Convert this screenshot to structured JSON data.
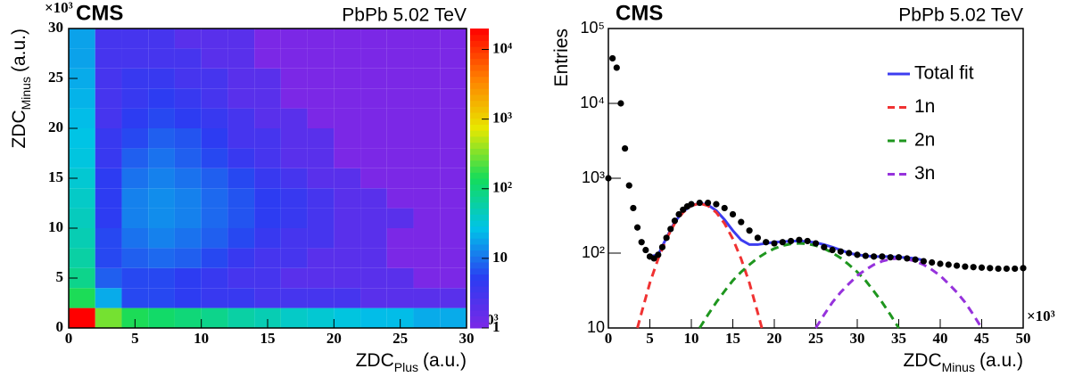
{
  "chart_data": [
    {
      "type": "heatmap",
      "title": "CMS",
      "subtitle": "PbPb 5.02 TeV",
      "x_label": {
        "text": "ZDC",
        "sub": "Plus",
        "unit": "(a.u.)"
      },
      "y_label": {
        "text": "ZDC",
        "sub": "Minus",
        "unit": "(a.u.)"
      },
      "x_multiplier": "×10³",
      "y_multiplier": "×10³",
      "xlim": [
        0,
        30
      ],
      "ylim": [
        0,
        30
      ],
      "xticks": [
        0,
        5,
        10,
        15,
        20,
        25,
        30
      ],
      "yticks": [
        0,
        5,
        10,
        15,
        20,
        25,
        30
      ],
      "x_bins": [
        0,
        2,
        4,
        6,
        8,
        10,
        12,
        14,
        16,
        18,
        20,
        22,
        24,
        26,
        28,
        30
      ],
      "y_bins": [
        0,
        2,
        4,
        6,
        8,
        10,
        12,
        14,
        16,
        18,
        20,
        22,
        24,
        26,
        28,
        30
      ],
      "z": [
        [
          20000,
          300,
          150,
          120,
          100,
          80,
          60,
          50,
          40,
          35,
          30,
          25,
          25,
          20,
          20
        ],
        [
          150,
          20,
          6,
          6,
          5,
          4,
          4,
          3,
          3,
          3,
          3,
          2,
          2,
          2,
          2
        ],
        [
          80,
          8,
          6,
          6,
          5,
          4,
          3,
          3,
          2,
          2,
          2,
          2,
          2,
          1,
          1
        ],
        [
          60,
          6,
          8,
          9,
          8,
          6,
          4,
          3,
          3,
          2,
          2,
          2,
          1,
          1,
          1
        ],
        [
          50,
          6,
          10,
          12,
          10,
          8,
          6,
          4,
          3,
          3,
          2,
          2,
          1,
          1,
          1
        ],
        [
          45,
          5,
          12,
          14,
          12,
          9,
          7,
          5,
          4,
          3,
          2,
          2,
          2,
          1,
          1
        ],
        [
          40,
          5,
          12,
          14,
          12,
          9,
          7,
          5,
          4,
          3,
          2,
          2,
          1,
          1,
          1
        ],
        [
          35,
          5,
          10,
          12,
          10,
          8,
          6,
          4,
          3,
          2,
          2,
          1,
          1,
          1,
          1
        ],
        [
          30,
          4,
          8,
          10,
          8,
          6,
          4,
          3,
          2,
          2,
          1,
          1,
          1,
          1,
          1
        ],
        [
          28,
          4,
          6,
          8,
          7,
          5,
          3,
          3,
          2,
          2,
          1,
          1,
          1,
          1,
          1
        ],
        [
          25,
          3,
          5,
          6,
          5,
          4,
          3,
          2,
          2,
          1,
          1,
          1,
          1,
          1,
          1
        ],
        [
          22,
          3,
          4,
          5,
          4,
          3,
          2,
          2,
          1,
          1,
          1,
          1,
          1,
          1,
          1
        ],
        [
          20,
          3,
          4,
          4,
          3,
          3,
          2,
          2,
          1,
          1,
          1,
          1,
          1,
          1,
          1
        ],
        [
          18,
          3,
          3,
          3,
          3,
          2,
          2,
          1,
          1,
          1,
          1,
          1,
          1,
          1,
          1
        ],
        [
          18,
          3,
          3,
          3,
          2,
          2,
          2,
          1,
          1,
          1,
          1,
          1,
          1,
          1,
          1
        ]
      ],
      "zlim": [
        1,
        20000
      ],
      "zlog": true,
      "zticks": [
        1,
        10,
        {
          "value": 100,
          "label": "10²"
        },
        {
          "value": 1000,
          "label": "10³"
        },
        {
          "value": 10000,
          "label": "10⁴"
        }
      ],
      "palette": [
        "#7b28e6",
        "#2b3cf2",
        "#00c4e8",
        "#14dc5a",
        "#e8e800",
        "#ff8000",
        "#ff0000"
      ]
    },
    {
      "type": "scatter",
      "title": "CMS",
      "subtitle": "PbPb 5.02 TeV",
      "x_label": {
        "text": "ZDC",
        "sub": "Minus",
        "unit": "(a.u.)"
      },
      "y_label": {
        "text": "Entries"
      },
      "x_multiplier": "×10³",
      "xlim": [
        0,
        50
      ],
      "ylim": [
        10,
        100000
      ],
      "ylog": true,
      "xticks": [
        0,
        5,
        10,
        15,
        20,
        25,
        30,
        35,
        40,
        45,
        50
      ],
      "yticks": [
        10,
        {
          "value": 100,
          "label": "10²"
        },
        {
          "value": 1000,
          "label": "10³"
        },
        {
          "value": 10000,
          "label": "10⁴"
        },
        {
          "value": 100000,
          "label": "10⁵"
        }
      ],
      "points": {
        "color": "#000000",
        "x": [
          0,
          0.5,
          1,
          1.5,
          2,
          2.5,
          3,
          3.5,
          4,
          4.5,
          5,
          5.5,
          6,
          6.5,
          7,
          7.5,
          8,
          8.5,
          9,
          9.5,
          10,
          11,
          12,
          13,
          14,
          15,
          16,
          17,
          18,
          19,
          20,
          21,
          22,
          23,
          24,
          25,
          26,
          27,
          28,
          29,
          30,
          31,
          32,
          33,
          34,
          35,
          36,
          37,
          38,
          39,
          40,
          41,
          42,
          43,
          44,
          45,
          46,
          47,
          48,
          49,
          50
        ],
        "values": [
          1000,
          40000,
          30000,
          10000,
          2500,
          800,
          400,
          220,
          140,
          110,
          90,
          85,
          95,
          120,
          160,
          210,
          270,
          330,
          380,
          420,
          450,
          470,
          470,
          450,
          400,
          330,
          260,
          200,
          160,
          140,
          135,
          140,
          145,
          150,
          145,
          135,
          120,
          110,
          105,
          100,
          95,
          92,
          90,
          90,
          88,
          88,
          85,
          82,
          78,
          75,
          72,
          70,
          68,
          66,
          65,
          64,
          63,
          62,
          62,
          62,
          63
        ]
      },
      "series": [
        {
          "name": "Total fit",
          "color": "#3c3cf0",
          "dash": false,
          "x": [
            5,
            6,
            7,
            8,
            9,
            10,
            11,
            12,
            13,
            14,
            15,
            16,
            17,
            18,
            19,
            20,
            21,
            22,
            23,
            24,
            25,
            26,
            27,
            28,
            29,
            30,
            31,
            32,
            33,
            34,
            35,
            36,
            37,
            38
          ],
          "values": [
            90,
            95,
            160,
            260,
            360,
            430,
            465,
            440,
            370,
            280,
            200,
            150,
            130,
            130,
            135,
            140,
            142,
            145,
            145,
            143,
            138,
            130,
            120,
            110,
            100,
            95,
            92,
            90,
            90,
            90,
            88,
            87,
            85,
            80
          ]
        },
        {
          "name": "1n",
          "color": "#f03232",
          "dash": true,
          "x": [
            3.5,
            4,
            5,
            6,
            7,
            8,
            9,
            10,
            11,
            12,
            13,
            14,
            15,
            16,
            17,
            18,
            18.5
          ],
          "values": [
            10,
            16,
            40,
            84,
            155,
            249,
            350,
            430,
            460,
            430,
            350,
            249,
            155,
            84,
            40,
            16,
            10
          ]
        },
        {
          "name": "2n",
          "color": "#1e961e",
          "dash": true,
          "x": [
            11,
            12,
            13,
            14,
            15,
            16,
            17,
            18,
            19,
            20,
            21,
            22,
            23,
            24,
            25,
            26,
            27,
            28,
            29,
            30,
            31,
            32,
            33,
            34,
            35
          ],
          "values": [
            10,
            15,
            22,
            31,
            43,
            56,
            70,
            86,
            101,
            115,
            126,
            133,
            135,
            133,
            126,
            115,
            101,
            86,
            70,
            56,
            43,
            31,
            22,
            15,
            10
          ]
        },
        {
          "name": "3n",
          "color": "#9632dc",
          "dash": true,
          "x": [
            25,
            26,
            27,
            28,
            29,
            30,
            31,
            32,
            33,
            34,
            35,
            36,
            37,
            38,
            39,
            40,
            41,
            42,
            43,
            44,
            45
          ],
          "values": [
            10,
            15,
            22,
            30,
            39,
            50,
            60,
            70,
            78,
            83,
            85,
            83,
            78,
            70,
            60,
            50,
            39,
            30,
            22,
            15,
            10
          ]
        }
      ]
    }
  ]
}
